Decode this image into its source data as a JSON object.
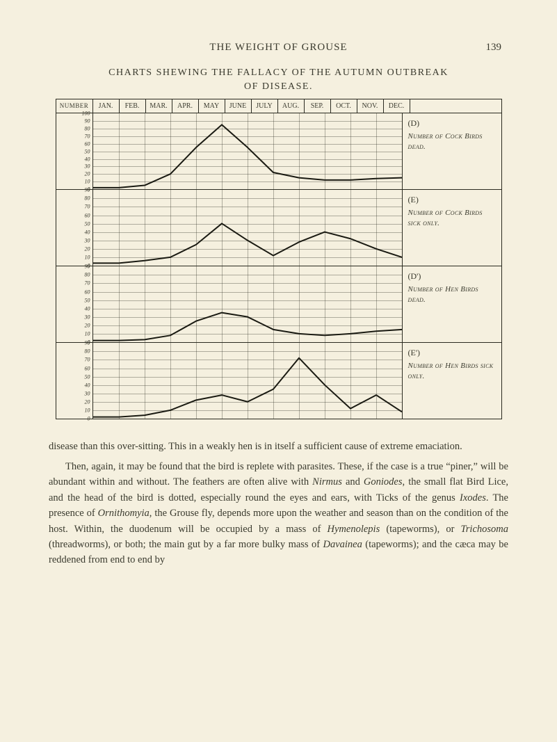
{
  "page": {
    "running_head": "THE WEIGHT OF GROUSE",
    "number": "139"
  },
  "chart": {
    "title_line1": "CHARTS SHEWING THE FALLACY OF THE AUTUMN OUTBREAK",
    "title_line2": "OF DISEASE.",
    "num_header": "NUMBER",
    "months": [
      "JAN.",
      "FEB.",
      "MAR.",
      "APR.",
      "MAY",
      "JUNE",
      "JULY",
      "AUG.",
      "SEP.",
      "OCT.",
      "NOV.",
      "DEC."
    ],
    "panels": [
      {
        "code": "(D)",
        "desc": "Number of Cock Birds dead.",
        "ymax": 100,
        "ytick": 10,
        "values": [
          2,
          2,
          5,
          20,
          55,
          85,
          55,
          22,
          15,
          12,
          12,
          14,
          15
        ]
      },
      {
        "code": "(E)",
        "desc": "Number of Cock Birds sick only.",
        "ymax": 90,
        "ytick": 10,
        "values": [
          3,
          3,
          6,
          10,
          25,
          50,
          30,
          12,
          28,
          40,
          32,
          20,
          10
        ]
      },
      {
        "code": "(D')",
        "desc": "Number of Hen Birds dead.",
        "ymax": 90,
        "ytick": 10,
        "values": [
          2,
          2,
          3,
          8,
          25,
          35,
          30,
          15,
          10,
          8,
          10,
          13,
          15
        ]
      },
      {
        "code": "(E')",
        "desc": "Number of Hen Birds sick only.",
        "ymax": 90,
        "ytick": 10,
        "values": [
          2,
          2,
          4,
          10,
          22,
          28,
          20,
          35,
          72,
          40,
          12,
          28,
          8
        ]
      }
    ],
    "grid_color": "rgba(42,42,32,0.35)",
    "line_color": "#1a1a12",
    "line_width": 2
  },
  "body": {
    "p1": "disease than this over-sitting. This in a weakly hen is in itself a sufficient cause of extreme emaciation.",
    "p2_a": "Then, again, it may be found that the bird is replete with parasites. These, if the case is a true “piner,” will be abundant within and without. The feathers are often alive with ",
    "p2_i1": "Nirmus",
    "p2_b": " and ",
    "p2_i2": "Goniodes",
    "p2_c": ", the small flat Bird Lice, and the head of the bird is dotted, especially round the eyes and ears, with Ticks of the genus ",
    "p2_i3": "Ixodes",
    "p2_d": ". The presence of ",
    "p2_i4": "Ornithomyia",
    "p2_e": ", the Grouse fly, depends more upon the weather and season than on the condition of the host. Within, the duodenum will be occupied by a mass of ",
    "p2_i5": "Hymenolepis",
    "p2_f": " (tapeworms), or ",
    "p2_i6": "Trichosoma",
    "p2_g": " (threadworms), or both; the main gut by a far more bulky mass of ",
    "p2_i7": "Davainea",
    "p2_h": " (tapeworms); and the cæca may be reddened from end to end by"
  }
}
